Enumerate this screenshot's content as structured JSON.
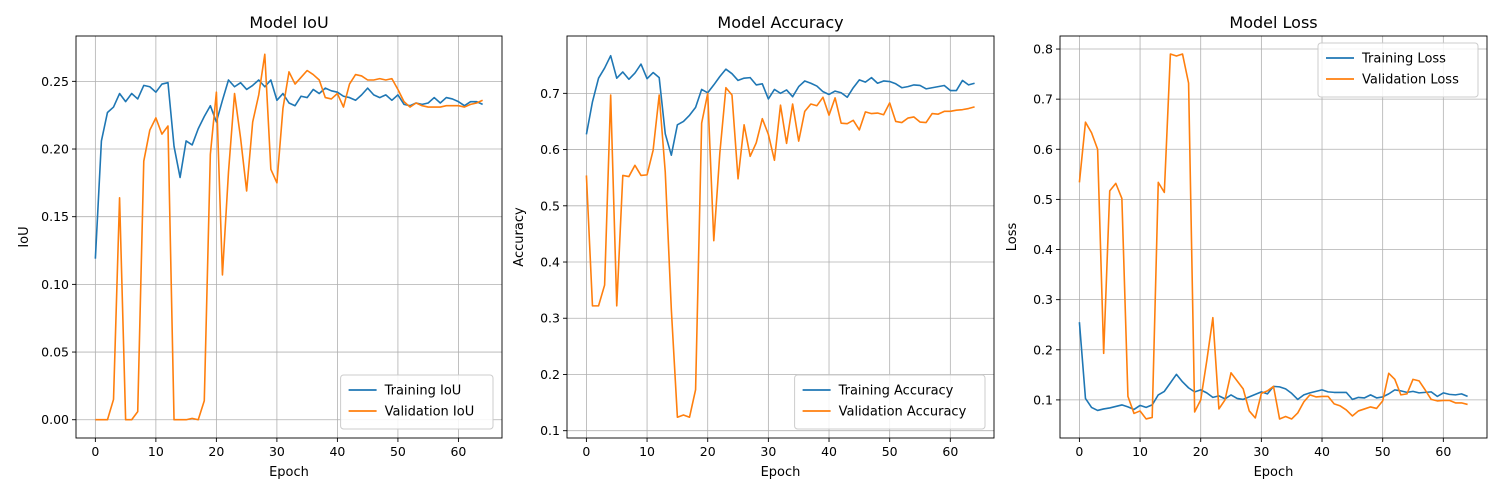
{
  "colors": {
    "training": "#1f77b4",
    "validation": "#ff7f0e",
    "grid": "#b0b0b0"
  },
  "chart_data": [
    {
      "type": "line",
      "title": "Model IoU",
      "xlabel": "Epoch",
      "ylabel": "IoU",
      "xlim": [
        -3.2,
        67.2
      ],
      "ylim": [
        -0.0135,
        0.2835
      ],
      "xticks": [
        0,
        10,
        20,
        30,
        40,
        50,
        60
      ],
      "yticks": [
        0.0,
        0.05,
        0.1,
        0.15,
        0.2,
        0.25
      ],
      "ytick_labels": [
        "0.00",
        "0.05",
        "0.10",
        "0.15",
        "0.20",
        "0.25"
      ],
      "grid": true,
      "legend_loc": "lower-right",
      "series": [
        {
          "name": "Training IoU",
          "color": "#1f77b4",
          "values": [
            0.119,
            0.206,
            0.227,
            0.231,
            0.241,
            0.235,
            0.241,
            0.237,
            0.247,
            0.246,
            0.242,
            0.248,
            0.249,
            0.202,
            0.179,
            0.206,
            0.203,
            0.215,
            0.224,
            0.232,
            0.22,
            0.236,
            0.251,
            0.246,
            0.249,
            0.244,
            0.247,
            0.251,
            0.246,
            0.251,
            0.236,
            0.241,
            0.234,
            0.232,
            0.239,
            0.238,
            0.244,
            0.241,
            0.245,
            0.243,
            0.242,
            0.239,
            0.238,
            0.236,
            0.24,
            0.245,
            0.24,
            0.238,
            0.24,
            0.236,
            0.24,
            0.233,
            0.232,
            0.234,
            0.233,
            0.234,
            0.238,
            0.234,
            0.238,
            0.237,
            0.235,
            0.232,
            0.235,
            0.235,
            0.233
          ]
        },
        {
          "name": "Validation IoU",
          "color": "#ff7f0e",
          "values": [
            0.0,
            0.0,
            0.0,
            0.015,
            0.164,
            0.0,
            0.0,
            0.006,
            0.191,
            0.214,
            0.223,
            0.211,
            0.217,
            0.0,
            0.0,
            0.0,
            0.001,
            0.0,
            0.014,
            0.196,
            0.242,
            0.107,
            0.183,
            0.241,
            0.208,
            0.169,
            0.22,
            0.24,
            0.27,
            0.185,
            0.175,
            0.23,
            0.257,
            0.248,
            0.253,
            0.258,
            0.255,
            0.251,
            0.238,
            0.237,
            0.241,
            0.231,
            0.248,
            0.255,
            0.254,
            0.251,
            0.251,
            0.252,
            0.251,
            0.252,
            0.244,
            0.235,
            0.231,
            0.234,
            0.232,
            0.231,
            0.231,
            0.231,
            0.232,
            0.232,
            0.232,
            0.231,
            0.233,
            0.234,
            0.236
          ]
        }
      ]
    },
    {
      "type": "line",
      "title": "Model Accuracy",
      "xlabel": "Epoch",
      "ylabel": "Accuracy",
      "xlim": [
        -3.2,
        67.2
      ],
      "ylim": [
        0.087,
        0.802
      ],
      "xticks": [
        0,
        10,
        20,
        30,
        40,
        50,
        60
      ],
      "yticks": [
        0.1,
        0.2,
        0.3,
        0.4,
        0.5,
        0.6,
        0.7
      ],
      "ytick_labels": [
        "0.1",
        "0.2",
        "0.3",
        "0.4",
        "0.5",
        "0.6",
        "0.7"
      ],
      "grid": true,
      "legend_loc": "lower-right",
      "series": [
        {
          "name": "Training Accuracy",
          "color": "#1f77b4",
          "values": [
            0.627,
            0.685,
            0.727,
            0.745,
            0.767,
            0.727,
            0.738,
            0.725,
            0.736,
            0.752,
            0.726,
            0.737,
            0.728,
            0.628,
            0.59,
            0.644,
            0.65,
            0.661,
            0.675,
            0.707,
            0.701,
            0.715,
            0.73,
            0.743,
            0.735,
            0.723,
            0.727,
            0.728,
            0.715,
            0.717,
            0.69,
            0.707,
            0.7,
            0.706,
            0.694,
            0.712,
            0.722,
            0.718,
            0.713,
            0.703,
            0.698,
            0.704,
            0.701,
            0.693,
            0.71,
            0.724,
            0.72,
            0.728,
            0.718,
            0.722,
            0.721,
            0.717,
            0.71,
            0.712,
            0.715,
            0.714,
            0.708,
            0.71,
            0.712,
            0.714,
            0.705,
            0.705,
            0.723,
            0.715,
            0.718
          ]
        },
        {
          "name": "Validation Accuracy",
          "color": "#ff7f0e",
          "values": [
            0.554,
            0.322,
            0.322,
            0.359,
            0.697,
            0.322,
            0.554,
            0.552,
            0.572,
            0.554,
            0.555,
            0.599,
            0.697,
            0.56,
            0.316,
            0.124,
            0.128,
            0.124,
            0.173,
            0.647,
            0.7,
            0.438,
            0.594,
            0.71,
            0.697,
            0.548,
            0.644,
            0.588,
            0.612,
            0.655,
            0.627,
            0.581,
            0.679,
            0.611,
            0.681,
            0.615,
            0.668,
            0.681,
            0.678,
            0.693,
            0.661,
            0.692,
            0.647,
            0.646,
            0.652,
            0.635,
            0.667,
            0.664,
            0.665,
            0.662,
            0.683,
            0.65,
            0.648,
            0.656,
            0.658,
            0.649,
            0.648,
            0.664,
            0.663,
            0.668,
            0.668,
            0.67,
            0.671,
            0.673,
            0.676
          ]
        }
      ]
    },
    {
      "type": "line",
      "title": "Model Loss",
      "xlabel": "Epoch",
      "ylabel": "Loss",
      "xlim": [
        -3.2,
        67.2
      ],
      "ylim": [
        0.024,
        0.826
      ],
      "xticks": [
        0,
        10,
        20,
        30,
        40,
        50,
        60
      ],
      "yticks": [
        0.1,
        0.2,
        0.3,
        0.4,
        0.5,
        0.6,
        0.7,
        0.8
      ],
      "ytick_labels": [
        "0.1",
        "0.2",
        "0.3",
        "0.4",
        "0.5",
        "0.6",
        "0.7",
        "0.8"
      ],
      "grid": true,
      "legend_loc": "upper-right",
      "series": [
        {
          "name": "Training Loss",
          "color": "#1f77b4",
          "values": [
            0.255,
            0.103,
            0.085,
            0.079,
            0.082,
            0.084,
            0.087,
            0.09,
            0.086,
            0.081,
            0.089,
            0.085,
            0.09,
            0.11,
            0.117,
            0.134,
            0.151,
            0.136,
            0.124,
            0.116,
            0.12,
            0.114,
            0.105,
            0.108,
            0.102,
            0.11,
            0.103,
            0.101,
            0.106,
            0.111,
            0.116,
            0.112,
            0.127,
            0.126,
            0.122,
            0.113,
            0.101,
            0.11,
            0.114,
            0.117,
            0.12,
            0.116,
            0.115,
            0.115,
            0.115,
            0.101,
            0.105,
            0.104,
            0.11,
            0.104,
            0.106,
            0.112,
            0.12,
            0.118,
            0.115,
            0.117,
            0.114,
            0.115,
            0.116,
            0.107,
            0.114,
            0.111,
            0.11,
            0.112,
            0.107
          ]
        },
        {
          "name": "Validation Loss",
          "color": "#ff7f0e",
          "values": [
            0.534,
            0.654,
            0.633,
            0.6,
            0.193,
            0.517,
            0.532,
            0.502,
            0.107,
            0.073,
            0.078,
            0.062,
            0.065,
            0.534,
            0.514,
            0.79,
            0.786,
            0.79,
            0.732,
            0.076,
            0.1,
            0.178,
            0.264,
            0.082,
            0.1,
            0.154,
            0.138,
            0.122,
            0.078,
            0.064,
            0.113,
            0.118,
            0.127,
            0.062,
            0.067,
            0.062,
            0.074,
            0.096,
            0.11,
            0.106,
            0.107,
            0.107,
            0.092,
            0.088,
            0.08,
            0.068,
            0.078,
            0.082,
            0.086,
            0.083,
            0.098,
            0.153,
            0.141,
            0.11,
            0.112,
            0.141,
            0.138,
            0.12,
            0.101,
            0.098,
            0.099,
            0.099,
            0.094,
            0.094,
            0.091
          ]
        }
      ]
    }
  ]
}
